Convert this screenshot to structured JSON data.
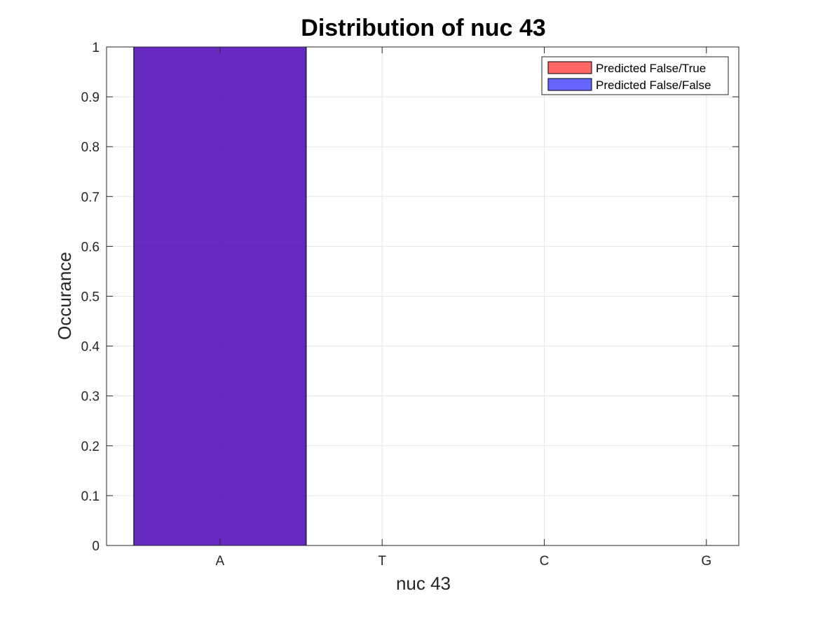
{
  "chart_data": {
    "type": "bar",
    "title": "Distribution of nuc 43",
    "xlabel": "nuc 43",
    "ylabel": "Occurance",
    "categories": [
      "A",
      "T",
      "C",
      "G"
    ],
    "ylim": [
      0,
      1
    ],
    "yticks": [
      "0",
      "0.1",
      "0.2",
      "0.3",
      "0.4",
      "0.5",
      "0.6",
      "0.7",
      "0.8",
      "0.9",
      "1"
    ],
    "grid": true,
    "legend_position": "top-right",
    "series": [
      {
        "name": "Predicted False/True",
        "values": [
          1,
          0,
          0,
          0
        ],
        "color": "#ff0000",
        "opacity": 0.6
      },
      {
        "name": "Predicted False/False",
        "values": [
          1,
          0,
          0,
          0
        ],
        "color": "#0000ff",
        "opacity": 0.6
      }
    ]
  }
}
